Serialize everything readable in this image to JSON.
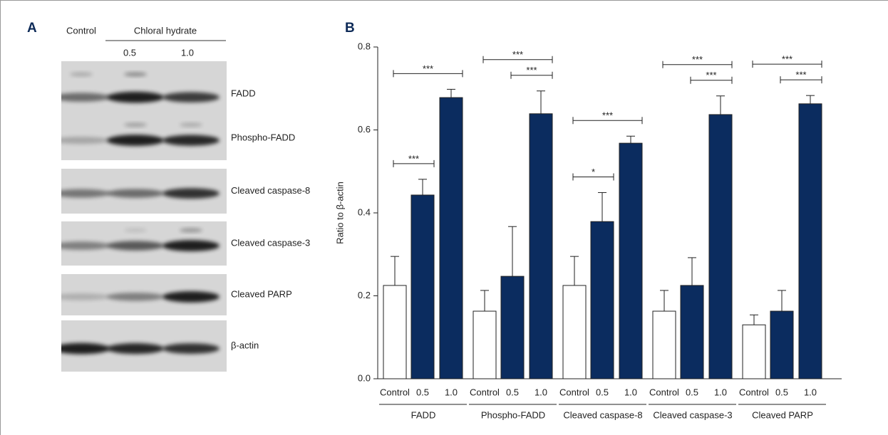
{
  "panel_a": {
    "label": "A",
    "control": "Control",
    "treatment": "Chloral hydrate",
    "doses": [
      "0.5",
      "1.0"
    ],
    "blots": [
      "FADD",
      "Phospho-FADD",
      "Cleaved caspase-8",
      "Cleaved caspase-3",
      "Cleaved PARP",
      "β-actin"
    ]
  },
  "chart_data": {
    "type": "bar",
    "label": "B",
    "ylabel": "Ratio to β-actin",
    "groups": [
      "FADD",
      "Phospho-FADD",
      "Cleaved caspase-8",
      "Cleaved caspase-3",
      "Cleaved PARP"
    ],
    "series": [
      {
        "name": "Control",
        "color": "#ffffff",
        "values": [
          0.225,
          0.163,
          0.225,
          0.163,
          0.13
        ],
        "errors": [
          0.07,
          0.05,
          0.07,
          0.05,
          0.024
        ]
      },
      {
        "name": "0.5",
        "color": "#0b2c5f",
        "values": [
          0.443,
          0.247,
          0.379,
          0.225,
          0.163
        ],
        "errors": [
          0.038,
          0.12,
          0.07,
          0.067,
          0.05
        ]
      },
      {
        "name": "1.0",
        "color": "#0b2c5f",
        "values": [
          0.678,
          0.639,
          0.568,
          0.637,
          0.663
        ],
        "errors": [
          0.02,
          0.055,
          0.017,
          0.045,
          0.02
        ]
      }
    ],
    "ylim": [
      0,
      0.8
    ],
    "yticks": [
      {
        "value": 0,
        "label": "0.0"
      },
      0.2,
      0.4,
      0.6,
      0.8
    ],
    "significance": [
      {
        "group": "FADD",
        "from": "Control",
        "to": "0.5",
        "label": "***"
      },
      {
        "group": "FADD",
        "from": "Control",
        "to": "1.0",
        "label": "***"
      },
      {
        "group": "Phospho-FADD",
        "from": "0.5",
        "to": "1.0",
        "label": "***"
      },
      {
        "group": "Phospho-FADD",
        "from": "Control",
        "to": "1.0",
        "label": "***"
      },
      {
        "group": "Cleaved caspase-8",
        "from": "Control",
        "to": "0.5",
        "label": "*"
      },
      {
        "group": "Cleaved caspase-8",
        "from": "Control",
        "to": "1.0",
        "label": "***"
      },
      {
        "group": "Cleaved caspase-3",
        "from": "0.5",
        "to": "1.0",
        "label": "***"
      },
      {
        "group": "Cleaved caspase-3",
        "from": "Control",
        "to": "1.0",
        "label": "***"
      },
      {
        "group": "Cleaved PARP",
        "from": "0.5",
        "to": "1.0",
        "label": "***"
      },
      {
        "group": "Cleaved PARP",
        "from": "Control",
        "to": "1.0",
        "label": "***"
      }
    ]
  }
}
